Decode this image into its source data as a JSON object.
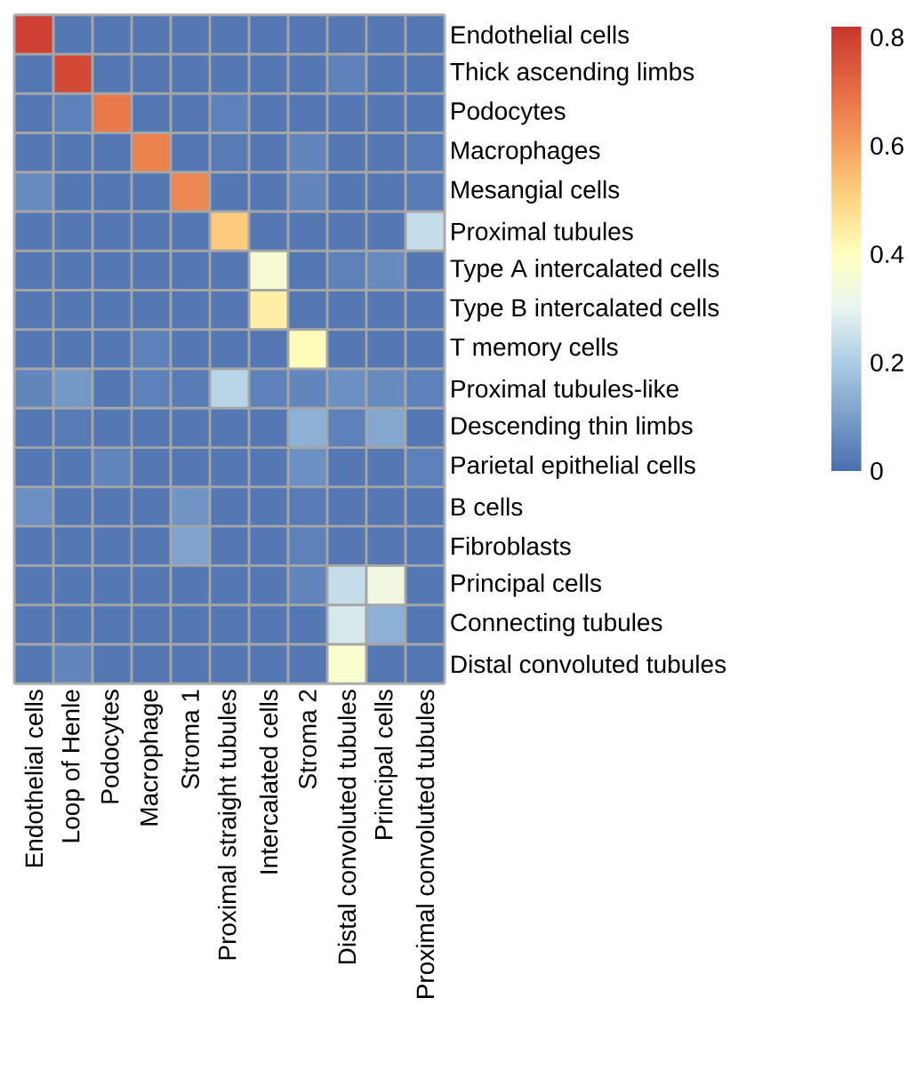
{
  "chart_data": {
    "type": "heatmap",
    "categories": [
      "Endothelial cells",
      "Loop of Henle",
      "Podocytes",
      "Macrophage",
      "Stroma 1",
      "Proximal straight tubules",
      "Intercalated cells",
      "Stroma 2",
      "Distal convoluted tubules",
      "Principal cells",
      "Proximal convoluted tubules"
    ],
    "y_categories": [
      "Endothelial cells",
      "Thick ascending limbs",
      "Podocytes",
      "Macrophages",
      "Mesangial cells",
      "Proximal tubules",
      "Type A intercalated cells",
      "Type B intercalated cells",
      "T memory cells",
      "Proximal tubules-like",
      "Descending thin limbs",
      "Parietal epithelial cells",
      "B cells",
      "Fibroblasts",
      "Principal cells",
      "Connecting tubules",
      "Distal convoluted tubules"
    ],
    "cells": [
      [
        0.8,
        0.02,
        0.02,
        0.02,
        0.02,
        0.02,
        0.02,
        0.02,
        0.02,
        0.02,
        0.02
      ],
      [
        0.02,
        0.78,
        0.02,
        0.02,
        0.02,
        0.02,
        0.02,
        0.02,
        0.04,
        0.02,
        0.02
      ],
      [
        0.02,
        0.04,
        0.68,
        0.02,
        0.02,
        0.04,
        0.02,
        0.02,
        0.02,
        0.02,
        0.02
      ],
      [
        0.02,
        0.02,
        0.02,
        0.66,
        0.02,
        0.03,
        0.02,
        0.05,
        0.02,
        0.02,
        0.03
      ],
      [
        0.06,
        0.02,
        0.02,
        0.02,
        0.65,
        0.02,
        0.02,
        0.05,
        0.02,
        0.02,
        0.03
      ],
      [
        0.02,
        0.02,
        0.02,
        0.02,
        0.02,
        0.52,
        0.02,
        0.02,
        0.02,
        0.02,
        0.24
      ],
      [
        0.02,
        0.02,
        0.02,
        0.02,
        0.02,
        0.02,
        0.36,
        0.02,
        0.04,
        0.06,
        0.02
      ],
      [
        0.02,
        0.02,
        0.02,
        0.02,
        0.02,
        0.02,
        0.44,
        0.02,
        0.02,
        0.02,
        0.02
      ],
      [
        0.02,
        0.02,
        0.02,
        0.04,
        0.02,
        0.02,
        0.02,
        0.41,
        0.02,
        0.02,
        0.02
      ],
      [
        0.05,
        0.09,
        0.02,
        0.04,
        0.03,
        0.22,
        0.04,
        0.05,
        0.07,
        0.06,
        0.04
      ],
      [
        0.02,
        0.03,
        0.02,
        0.02,
        0.02,
        0.02,
        0.02,
        0.14,
        0.04,
        0.12,
        0.02
      ],
      [
        0.02,
        0.02,
        0.05,
        0.02,
        0.02,
        0.02,
        0.02,
        0.07,
        0.02,
        0.02,
        0.04
      ],
      [
        0.07,
        0.02,
        0.02,
        0.02,
        0.08,
        0.02,
        0.02,
        0.03,
        0.02,
        0.02,
        0.02
      ],
      [
        0.02,
        0.02,
        0.02,
        0.02,
        0.11,
        0.02,
        0.02,
        0.04,
        0.02,
        0.02,
        0.02
      ],
      [
        0.02,
        0.02,
        0.02,
        0.02,
        0.02,
        0.02,
        0.02,
        0.05,
        0.24,
        0.33,
        0.02
      ],
      [
        0.02,
        0.02,
        0.02,
        0.02,
        0.02,
        0.02,
        0.02,
        0.02,
        0.27,
        0.14,
        0.02
      ],
      [
        0.02,
        0.05,
        0.02,
        0.02,
        0.02,
        0.02,
        0.02,
        0.02,
        0.37,
        0.02,
        0.02
      ]
    ],
    "clim": [
      0,
      0.82
    ],
    "cticks": [
      0,
      0.2,
      0.4,
      0.6,
      0.8
    ]
  }
}
